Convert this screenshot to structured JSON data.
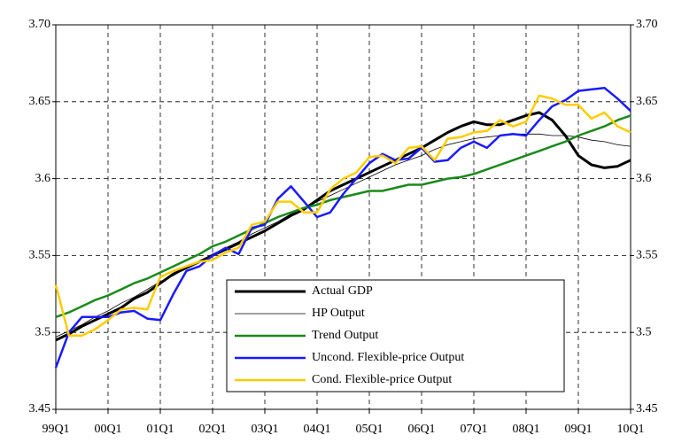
{
  "chart_data": {
    "type": "line",
    "categories": [
      "99Q1",
      null,
      null,
      null,
      "00Q1",
      null,
      null,
      null,
      "01Q1",
      null,
      null,
      null,
      "02Q1",
      null,
      null,
      null,
      "03Q1",
      null,
      null,
      null,
      "04Q1",
      null,
      null,
      null,
      "05Q1",
      null,
      null,
      null,
      "06Q1",
      null,
      null,
      null,
      "07Q1",
      null,
      null,
      null,
      "08Q1",
      null,
      null,
      null,
      "09Q1",
      null,
      null,
      null,
      "10Q1"
    ],
    "series": [
      {
        "name": "Actual GDP",
        "color": "#000000",
        "values": [
          3.495,
          3.499,
          3.504,
          3.508,
          3.512,
          3.516,
          3.522,
          3.526,
          3.532,
          3.538,
          3.542,
          3.546,
          3.55,
          3.554,
          3.558,
          3.562,
          3.566,
          3.571,
          3.576,
          3.58,
          3.586,
          3.592,
          3.596,
          3.6,
          3.604,
          3.608,
          3.612,
          3.616,
          3.62,
          3.625,
          3.63,
          3.634,
          3.637,
          3.635,
          3.635,
          3.638,
          3.641,
          3.643,
          3.638,
          3.628,
          3.615,
          3.609,
          3.607,
          3.608,
          3.612
        ]
      },
      {
        "name": "HP Output",
        "color": "#000000",
        "values": [
          3.497,
          3.501,
          3.505,
          3.51,
          3.514,
          3.519,
          3.523,
          3.528,
          3.533,
          3.537,
          3.542,
          3.546,
          3.551,
          3.555,
          3.559,
          3.564,
          3.568,
          3.572,
          3.577,
          3.581,
          3.585,
          3.589,
          3.593,
          3.597,
          3.601,
          3.605,
          3.609,
          3.612,
          3.615,
          3.619,
          3.622,
          3.624,
          3.626,
          3.627,
          3.628,
          3.629,
          3.629,
          3.629,
          3.628,
          3.628,
          3.627,
          3.625,
          3.624,
          3.622,
          3.621
        ]
      },
      {
        "name": "Trend Output",
        "color": "#1a8a1a",
        "values": [
          3.51,
          3.513,
          3.517,
          3.521,
          3.524,
          3.528,
          3.532,
          3.535,
          3.539,
          3.543,
          3.547,
          3.551,
          3.556,
          3.559,
          3.563,
          3.567,
          3.571,
          3.575,
          3.578,
          3.581,
          3.583,
          3.586,
          3.588,
          3.59,
          3.592,
          3.592,
          3.594,
          3.596,
          3.596,
          3.598,
          3.6,
          3.601,
          3.603,
          3.606,
          3.609,
          3.612,
          3.615,
          3.618,
          3.621,
          3.624,
          3.628,
          3.631,
          3.634,
          3.638,
          3.641
        ]
      },
      {
        "name": "Uncond. Flexible-price Output",
        "color": "#1a1aff",
        "values": [
          3.477,
          3.5,
          3.51,
          3.51,
          3.51,
          3.513,
          3.514,
          3.509,
          3.508,
          3.525,
          3.54,
          3.543,
          3.55,
          3.555,
          3.551,
          3.568,
          3.57,
          3.587,
          3.595,
          3.585,
          3.575,
          3.578,
          3.59,
          3.6,
          3.61,
          3.616,
          3.612,
          3.613,
          3.62,
          3.611,
          3.612,
          3.62,
          3.624,
          3.62,
          3.628,
          3.629,
          3.628,
          3.638,
          3.647,
          3.651,
          3.657,
          3.658,
          3.659,
          3.652,
          3.644
        ]
      },
      {
        "name": "Cond. Flexible-price Output",
        "color": "#ffcc00",
        "values": [
          3.531,
          3.498,
          3.498,
          3.502,
          3.508,
          3.515,
          3.516,
          3.515,
          3.536,
          3.54,
          3.543,
          3.546,
          3.547,
          3.552,
          3.555,
          3.57,
          3.572,
          3.585,
          3.585,
          3.578,
          3.578,
          3.593,
          3.6,
          3.604,
          3.614,
          3.615,
          3.61,
          3.62,
          3.621,
          3.612,
          3.626,
          3.627,
          3.63,
          3.631,
          3.638,
          3.634,
          3.637,
          3.654,
          3.652,
          3.648,
          3.648,
          3.639,
          3.643,
          3.634,
          3.63
        ]
      }
    ],
    "ylim": [
      3.45,
      3.7
    ],
    "yticks": [
      {
        "value": 3.45,
        "label": "3.45"
      },
      3.5,
      3.55,
      3.6,
      3.65,
      {
        "value": 3.7,
        "label": "3.70"
      }
    ],
    "y2lim": [
      3.45,
      3.7
    ],
    "y2ticks": [
      {
        "value": 3.45,
        "label": "3.45"
      },
      3.5,
      3.55,
      3.6,
      3.65,
      {
        "value": 3.7,
        "label": "3.70"
      }
    ],
    "grid": true,
    "legend": "lower right"
  }
}
